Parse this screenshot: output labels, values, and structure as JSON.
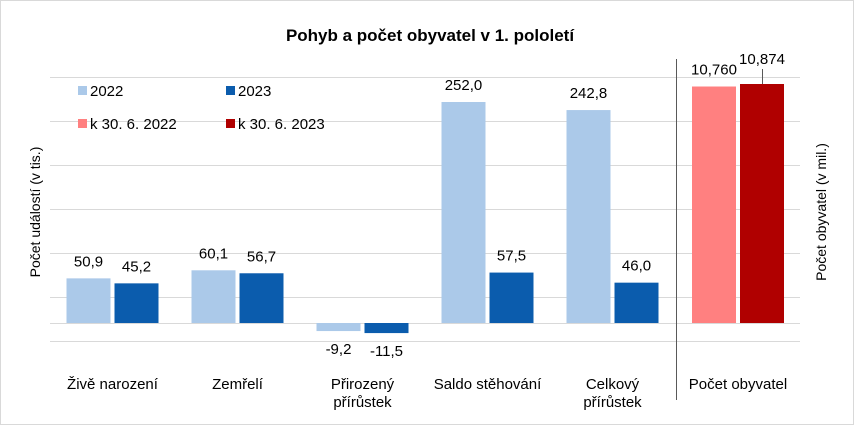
{
  "chart_data": {
    "type": "bar",
    "title": "Pohyb a počet obyvatel v 1. pololetí",
    "ylabel": "Počet událostí (v tis.)",
    "y2label": "Počet obyvatel (v mil.)",
    "categories": [
      "Živě narození",
      "Zemřelí",
      "Přirozený přírůstek",
      "Saldo stěhování",
      "Celkový přírůstek"
    ],
    "category_lines": [
      [
        "Živě narození"
      ],
      [
        "Zemřelí"
      ],
      [
        "Přirozený",
        "přírůstek"
      ],
      [
        "Saldo stěhování"
      ],
      [
        "Celkový",
        "přírůstek"
      ]
    ],
    "series": [
      {
        "name": "2022",
        "color": "#abc9e9",
        "values": [
          50.9,
          60.1,
          -9.2,
          252.0,
          242.8
        ],
        "labels": [
          "50,9",
          "60,1",
          "-9,2",
          "252,0",
          "242,8"
        ]
      },
      {
        "name": "2023",
        "color": "#0b5cad",
        "values": [
          45.2,
          56.7,
          -11.5,
          57.5,
          46.0
        ],
        "labels": [
          "45,2",
          "56,7",
          "-11,5",
          "57,5",
          "46,0"
        ]
      }
    ],
    "secondary": {
      "category": "Počet obyvatel",
      "series": [
        {
          "name": "k 30. 6. 2022",
          "color": "#ff8080",
          "value": 10.76,
          "label": "10,760"
        },
        {
          "name": "k 30. 6. 2023",
          "color": "#b00000",
          "value": 10.874,
          "label": "10,874"
        }
      ]
    },
    "ylim": [
      -20,
      280
    ],
    "grid": true,
    "legend": "top-left"
  }
}
